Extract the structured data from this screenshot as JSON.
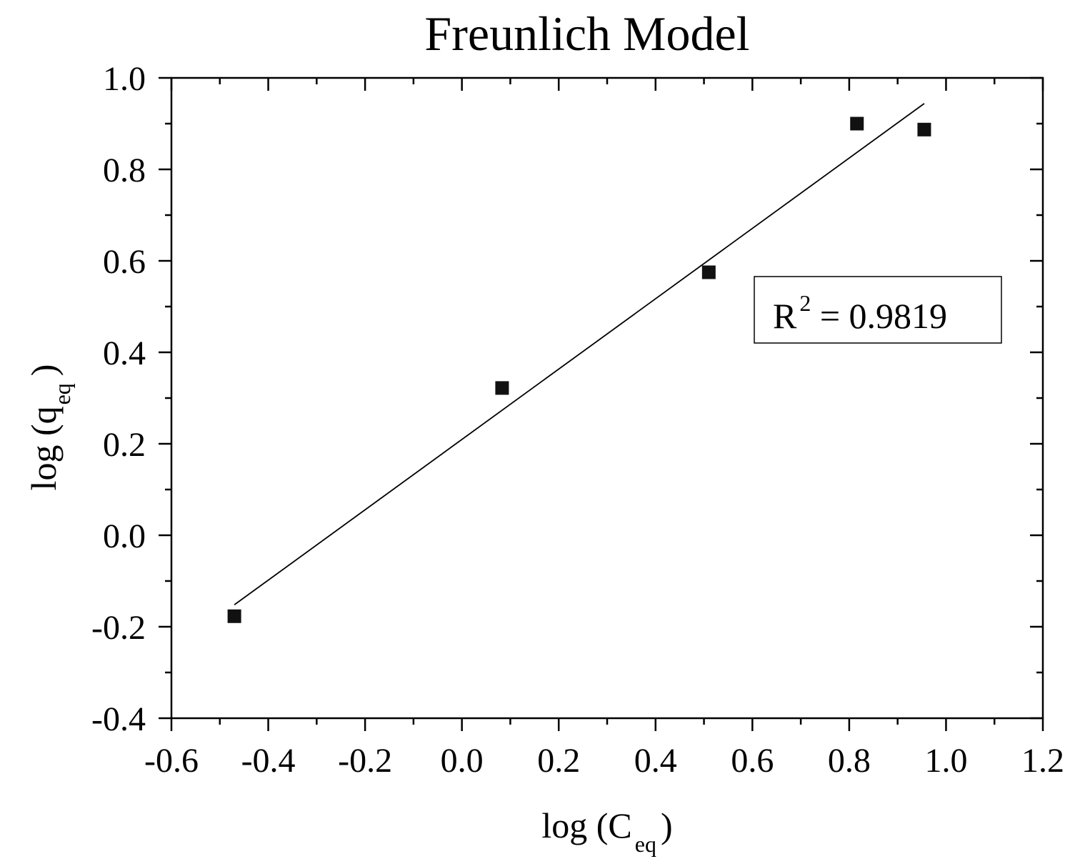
{
  "chart_data": {
    "type": "scatter",
    "title": "Freunlich Model",
    "xlabel": {
      "main": "log (C",
      "sub": "eq",
      "close": ")"
    },
    "ylabel": {
      "main": "log (q",
      "sub": "eq",
      "close": ")"
    },
    "xlim": [
      -0.6,
      1.2
    ],
    "ylim": [
      -0.4,
      1.0
    ],
    "x_ticks": [
      -0.6,
      -0.4,
      -0.2,
      0.0,
      0.2,
      0.4,
      0.6,
      0.8,
      1.0,
      1.2
    ],
    "x_tick_labels": [
      "-0.6",
      "-0.4",
      "-0.2",
      "0.0",
      "0.2",
      "0.4",
      "0.6",
      "0.8",
      "1.0",
      "1.2"
    ],
    "y_ticks": [
      -0.4,
      -0.2,
      0.0,
      0.2,
      0.4,
      0.6,
      0.8,
      1.0
    ],
    "y_tick_labels": [
      "-0.4",
      "-0.2",
      "0.0",
      "0.2",
      "0.4",
      "0.6",
      "0.8",
      "1.0"
    ],
    "grid": false,
    "series": [
      {
        "marker": "square",
        "color": "#111111",
        "points": [
          {
            "x": -0.47,
            "y": -0.177
          },
          {
            "x": 0.083,
            "y": 0.322
          },
          {
            "x": 0.51,
            "y": 0.575
          },
          {
            "x": 0.816,
            "y": 0.9
          },
          {
            "x": 0.955,
            "y": 0.887
          }
        ]
      }
    ],
    "fit_line": {
      "color": "#000000",
      "x": [
        -0.47,
        0.955
      ],
      "y": [
        -0.152,
        0.944
      ]
    },
    "annotation": {
      "main": "R",
      "sup": "2",
      "rest": " = 0.9819",
      "box": true
    }
  }
}
